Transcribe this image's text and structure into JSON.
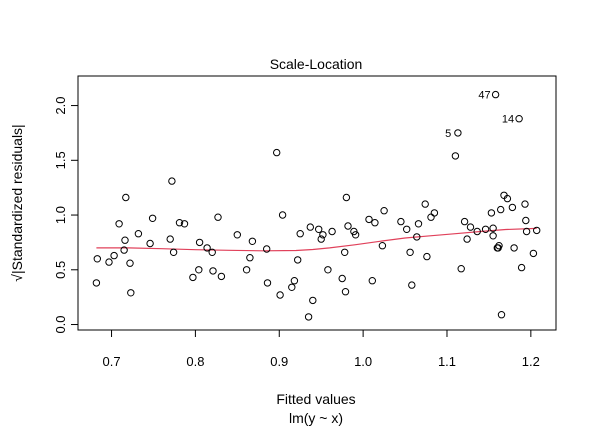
{
  "chart_data": {
    "type": "scatter",
    "title": "Scale-Location",
    "xlabel": "Fitted values",
    "sublabel": "lm(y ~ x)",
    "ylabel": "√|Standardized residuals|",
    "xlim": [
      0.66,
      1.23
    ],
    "ylim": [
      -0.05,
      2.27
    ],
    "xticks": [
      "0.7",
      "0.8",
      "0.9",
      "1.0",
      "1.1",
      "1.2"
    ],
    "xtick_values": [
      0.7,
      0.8,
      0.9,
      1.0,
      1.1,
      1.2
    ],
    "yticks": [
      "0.0",
      "0.5",
      "1.0",
      "1.5",
      "2.0"
    ],
    "ytick_values": [
      0.0,
      0.5,
      1.0,
      1.5,
      2.0
    ],
    "smooth_color": "#e0405a",
    "point_color": "#000000",
    "labels": [
      {
        "text": "47",
        "x": 1.158,
        "y": 2.1
      },
      {
        "text": "14",
        "x": 1.186,
        "y": 1.88
      },
      {
        "text": "5",
        "x": 1.111,
        "y": 1.75
      }
    ],
    "points": [
      [
        0.682,
        0.38
      ],
      [
        0.683,
        0.6
      ],
      [
        0.697,
        0.57
      ],
      [
        0.703,
        0.63
      ],
      [
        0.709,
        0.92
      ],
      [
        0.715,
        0.68
      ],
      [
        0.716,
        0.77
      ],
      [
        0.717,
        1.16
      ],
      [
        0.722,
        0.56
      ],
      [
        0.723,
        0.29
      ],
      [
        0.732,
        0.83
      ],
      [
        0.746,
        0.74
      ],
      [
        0.749,
        0.97
      ],
      [
        0.772,
        1.31
      ],
      [
        0.77,
        0.78
      ],
      [
        0.774,
        0.66
      ],
      [
        0.781,
        0.93
      ],
      [
        0.787,
        0.92
      ],
      [
        0.797,
        0.43
      ],
      [
        0.804,
        0.5
      ],
      [
        0.805,
        0.75
      ],
      [
        0.814,
        0.7
      ],
      [
        0.82,
        0.66
      ],
      [
        0.821,
        0.49
      ],
      [
        0.827,
        0.98
      ],
      [
        0.831,
        0.44
      ],
      [
        0.85,
        0.82
      ],
      [
        0.861,
        0.5
      ],
      [
        0.865,
        0.61
      ],
      [
        0.868,
        0.76
      ],
      [
        0.885,
        0.69
      ],
      [
        0.886,
        0.38
      ],
      [
        0.897,
        1.57
      ],
      [
        0.901,
        0.27
      ],
      [
        0.904,
        1.0
      ],
      [
        0.915,
        0.34
      ],
      [
        0.918,
        0.4
      ],
      [
        0.922,
        0.59
      ],
      [
        0.925,
        0.83
      ],
      [
        0.935,
        0.07
      ],
      [
        0.937,
        0.89
      ],
      [
        0.94,
        0.22
      ],
      [
        0.947,
        0.87
      ],
      [
        0.95,
        0.78
      ],
      [
        0.952,
        0.82
      ],
      [
        0.958,
        0.5
      ],
      [
        0.963,
        0.85
      ],
      [
        0.975,
        0.42
      ],
      [
        0.978,
        0.66
      ],
      [
        0.979,
        0.3
      ],
      [
        0.98,
        1.16
      ],
      [
        0.982,
        0.9
      ],
      [
        0.989,
        0.85
      ],
      [
        0.991,
        0.82
      ],
      [
        1.007,
        0.96
      ],
      [
        1.011,
        0.4
      ],
      [
        1.014,
        0.93
      ],
      [
        1.023,
        0.72
      ],
      [
        1.025,
        1.04
      ],
      [
        1.045,
        0.94
      ],
      [
        1.052,
        0.87
      ],
      [
        1.056,
        0.66
      ],
      [
        1.058,
        0.36
      ],
      [
        1.064,
        0.8
      ],
      [
        1.066,
        0.92
      ],
      [
        1.074,
        1.1
      ],
      [
        1.076,
        0.62
      ],
      [
        1.081,
        0.98
      ],
      [
        1.085,
        1.02
      ],
      [
        1.11,
        1.54
      ],
      [
        1.113,
        1.75
      ],
      [
        1.117,
        0.51
      ],
      [
        1.121,
        0.94
      ],
      [
        1.124,
        0.78
      ],
      [
        1.128,
        0.89
      ],
      [
        1.136,
        0.85
      ],
      [
        1.146,
        0.87
      ],
      [
        1.153,
        1.02
      ],
      [
        1.155,
        0.81
      ],
      [
        1.155,
        0.88
      ],
      [
        1.158,
        2.1
      ],
      [
        1.16,
        0.7
      ],
      [
        1.161,
        0.7
      ],
      [
        1.162,
        0.72
      ],
      [
        1.164,
        1.05
      ],
      [
        1.165,
        0.09
      ],
      [
        1.168,
        1.18
      ],
      [
        1.172,
        1.15
      ],
      [
        1.178,
        1.07
      ],
      [
        1.18,
        0.7
      ],
      [
        1.186,
        1.88
      ],
      [
        1.189,
        0.52
      ],
      [
        1.193,
        1.1
      ],
      [
        1.194,
        0.95
      ],
      [
        1.195,
        0.85
      ],
      [
        1.203,
        0.65
      ],
      [
        1.207,
        0.86
      ]
    ],
    "smooth": [
      [
        0.682,
        0.7
      ],
      [
        0.72,
        0.7
      ],
      [
        0.76,
        0.693
      ],
      [
        0.8,
        0.683
      ],
      [
        0.84,
        0.678
      ],
      [
        0.88,
        0.673
      ],
      [
        0.92,
        0.676
      ],
      [
        0.94,
        0.685
      ],
      [
        0.96,
        0.7
      ],
      [
        0.99,
        0.728
      ],
      [
        1.02,
        0.76
      ],
      [
        1.05,
        0.79
      ],
      [
        1.08,
        0.81
      ],
      [
        1.11,
        0.83
      ],
      [
        1.14,
        0.85
      ],
      [
        1.17,
        0.868
      ],
      [
        1.207,
        0.878
      ]
    ]
  }
}
